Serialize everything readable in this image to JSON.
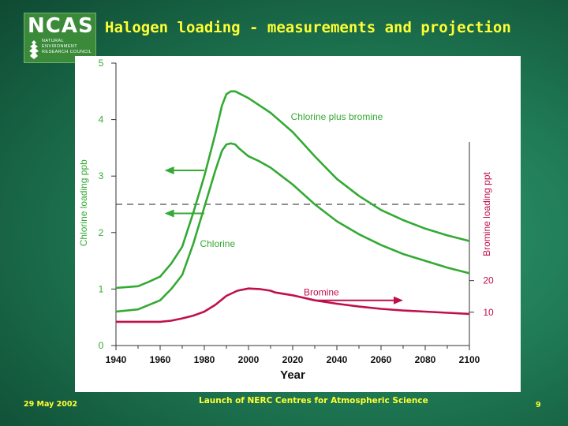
{
  "logo": {
    "title": "NCAS",
    "line1": "NATURAL",
    "line2": "ENVIRONMENT",
    "line3": "RESEARCH COUNCIL"
  },
  "slide_title": "Halogen loading - measurements and projection",
  "footer": {
    "date": "29 May 2002",
    "center": "Launch of NERC Centres for Atmospheric Science",
    "page": "9"
  },
  "colors": {
    "green": "#33aa33",
    "crimson": "#c0104a",
    "title_yellow": "#ffff33"
  },
  "chart_data": {
    "type": "line",
    "xlabel": "Year",
    "ylabel": "Chlorine  loading  ppb",
    "y2label": "Bromine loading ppt",
    "xlim": [
      1940,
      2100
    ],
    "ylim": [
      0,
      5
    ],
    "x_ticks": [
      1940,
      1960,
      1980,
      2000,
      2020,
      2040,
      2060,
      2080,
      2100
    ],
    "y_ticks": [
      0,
      1,
      2,
      3,
      4,
      5
    ],
    "y2_ticks": [
      {
        "label": "10",
        "value_on_left_axis": 0.59
      },
      {
        "label": "20",
        "value_on_left_axis": 1.15
      }
    ],
    "threshold": 2.5,
    "series": [
      {
        "name": "Chlorine plus bromine",
        "axis": "left",
        "x": [
          1940,
          1950,
          1955,
          1960,
          1965,
          1970,
          1975,
          1980,
          1985,
          1988,
          1990,
          1992,
          1994,
          1996,
          2000,
          2005,
          2010,
          2015,
          2020,
          2030,
          2040,
          2050,
          2060,
          2070,
          2080,
          2090,
          2100
        ],
        "y": [
          1.02,
          1.05,
          1.13,
          1.22,
          1.45,
          1.75,
          2.35,
          3.0,
          3.75,
          4.25,
          4.45,
          4.5,
          4.5,
          4.46,
          4.38,
          4.25,
          4.12,
          3.95,
          3.78,
          3.35,
          2.95,
          2.65,
          2.4,
          2.22,
          2.07,
          1.95,
          1.85
        ]
      },
      {
        "name": "Chlorine",
        "axis": "left",
        "x": [
          1940,
          1950,
          1955,
          1960,
          1965,
          1970,
          1975,
          1980,
          1985,
          1988,
          1990,
          1992,
          1994,
          1996,
          2000,
          2005,
          2010,
          2015,
          2020,
          2030,
          2040,
          2050,
          2060,
          2070,
          2080,
          2090,
          2100
        ],
        "y": [
          0.6,
          0.64,
          0.72,
          0.8,
          1.0,
          1.25,
          1.8,
          2.45,
          3.1,
          3.45,
          3.56,
          3.58,
          3.56,
          3.48,
          3.35,
          3.26,
          3.15,
          3.0,
          2.85,
          2.5,
          2.2,
          1.97,
          1.78,
          1.62,
          1.5,
          1.38,
          1.28
        ]
      },
      {
        "name": "Bromine",
        "axis": "right",
        "x": [
          1940,
          1950,
          1960,
          1965,
          1970,
          1975,
          1980,
          1985,
          1990,
          1995,
          2000,
          2005,
          2010,
          2012,
          2020,
          2030,
          2040,
          2050,
          2060,
          2070,
          2080,
          2090,
          2100
        ],
        "y": [
          0.42,
          0.42,
          0.42,
          0.44,
          0.48,
          0.53,
          0.6,
          0.72,
          0.88,
          0.97,
          1.01,
          1.0,
          0.97,
          0.94,
          0.89,
          0.8,
          0.74,
          0.69,
          0.65,
          0.62,
          0.6,
          0.58,
          0.56
        ]
      }
    ],
    "annotations": [
      {
        "text": "Chlorine plus bromine",
        "x": 2040,
        "y": 4.05,
        "color": "green"
      },
      {
        "text": "Chlorine",
        "x": 1986,
        "y": 1.8,
        "color": "green"
      },
      {
        "text": "Bromine",
        "x": 2033,
        "y": 0.94,
        "color": "crimson"
      }
    ],
    "arrows": [
      {
        "direction": "left",
        "from": [
          1980,
          3.1
        ],
        "to": [
          1962,
          3.1
        ],
        "color": "green"
      },
      {
        "direction": "left",
        "from": [
          1980,
          2.34
        ],
        "to": [
          1962,
          2.34
        ],
        "color": "green"
      },
      {
        "direction": "right",
        "from": [
          2030,
          0.8
        ],
        "to": [
          2070,
          0.8
        ],
        "color": "crimson"
      }
    ]
  }
}
